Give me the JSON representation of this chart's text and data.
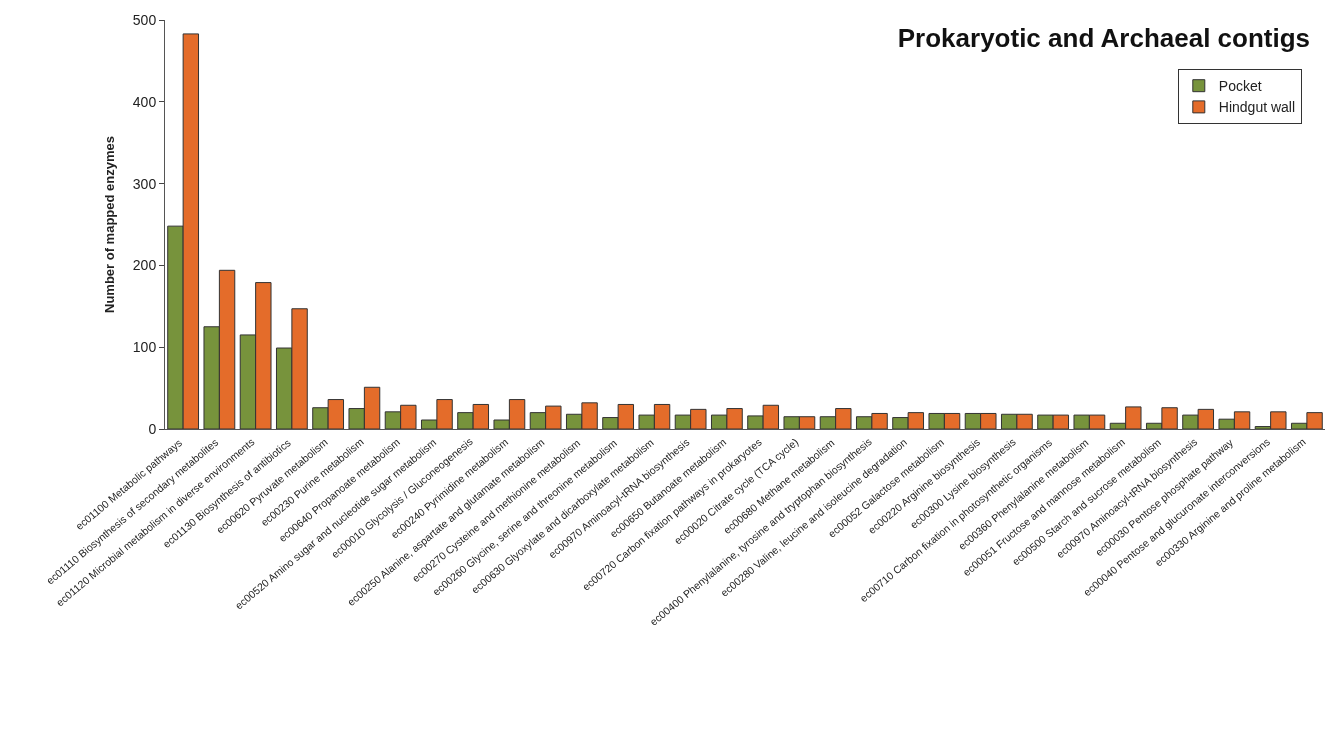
{
  "chart_data": {
    "type": "bar",
    "title": "Prokaryotic and Archaeal contigs",
    "ylabel": "Number of mapped enzymes",
    "categories": [
      "ec01100 Metabolic pathways",
      "ec01110 Biosynthesis of secondary metabolites",
      "ec01120 Microbial metabolism in diverse environments",
      "ec01130 Biosynthesis of antibiotics",
      "ec00620 Pyruvate metabolism",
      "ec00230 Purine metabolism",
      "ec00640 Propanoate metabolism",
      "ec00520 Amino sugar and nucleotide sugar metabolism",
      "ec00010 Glycolysis / Gluconeogenesis",
      "ec00240 Pyrimidine metabolism",
      "ec00250 Alanine, aspartate and glutamate metabolism",
      "ec00270 Cysteine and methionine metabolism",
      "ec00260 Glycine, serine and threonine metabolism",
      "ec00630 Glyoxylate and dicarboxylate metabolism",
      "ec00970 Aminoacyl-tRNA biosynthesis",
      "ec00650 Butanoate metabolism",
      "ec00720 Carbon fixation pathways in prokaryotes",
      "ec00020 Citrate cycle (TCA cycle)",
      "ec00680 Methane metabolism",
      "ec00400 Phenylalanine, tyrosine and tryptophan biosynthesis",
      "ec00280 Valine, leucine and isoleucine degradation",
      "ec00052 Galactose metabolism",
      "ec00220 Arginine biosynthesis",
      "ec00300 Lysine biosynthesis",
      "ec00710 Carbon fixation in photosynthetic organisms",
      "ec00360 Phenylalanine metabolism",
      "ec00051 Fructose and mannose metabolism",
      "ec00500 Starch and sucrose metabolism",
      "ec00970 Aminoacyl-tRNA biosynthesis",
      "ec00030 Pentose phosphate pathway",
      "ec00040 Pentose and glucuronate interconversions",
      "ec00330 Arginine and proline metabolism"
    ],
    "series": [
      {
        "name": "Pocket",
        "color": "#77933c",
        "values": [
          248,
          125,
          115,
          99,
          26,
          25,
          21,
          11,
          20,
          11,
          20,
          18,
          14,
          17,
          17,
          17,
          16,
          15,
          15,
          15,
          14,
          19,
          19,
          18,
          17,
          17,
          7,
          7,
          17,
          12,
          3,
          7
        ]
      },
      {
        "name": "Hindgut wall",
        "color": "#e46c2a",
        "values": [
          483,
          194,
          179,
          147,
          36,
          51,
          29,
          36,
          30,
          36,
          28,
          32,
          30,
          30,
          24,
          25,
          29,
          15,
          25,
          19,
          20,
          19,
          19,
          18,
          17,
          17,
          27,
          26,
          24,
          21,
          21,
          20
        ]
      }
    ],
    "ylim": [
      0,
      500
    ],
    "yticks": [
      0,
      100,
      200,
      300,
      400,
      500
    ],
    "legend": "top right"
  }
}
